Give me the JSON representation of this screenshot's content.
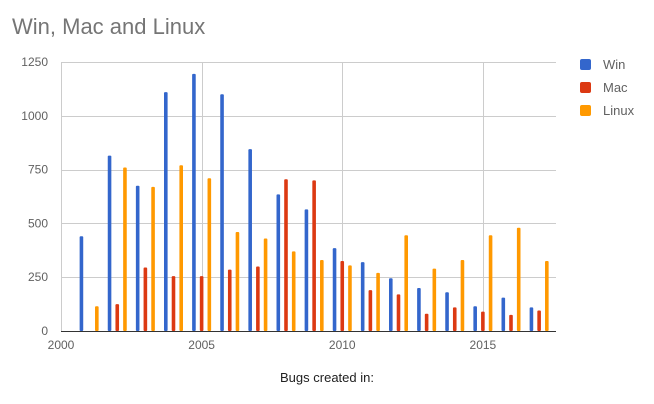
{
  "chart_data": {
    "type": "bar",
    "title": "Win, Mac and Linux",
    "xlabel": "Bugs created in:",
    "ylabel": "",
    "x": [
      2001,
      2002,
      2003,
      2004,
      2005,
      2006,
      2007,
      2008,
      2009,
      2010,
      2011,
      2012,
      2013,
      2014,
      2015,
      2016,
      2017
    ],
    "series": [
      {
        "name": "Win",
        "color": "#3366cc",
        "values": [
          440,
          815,
          675,
          1110,
          1195,
          1100,
          845,
          635,
          565,
          385,
          320,
          245,
          200,
          180,
          115,
          155,
          110
        ]
      },
      {
        "name": "Mac",
        "color": "#dc3912",
        "values": [
          null,
          125,
          295,
          255,
          255,
          285,
          300,
          705,
          700,
          325,
          190,
          170,
          80,
          110,
          90,
          75,
          95
        ]
      },
      {
        "name": "Linux",
        "color": "#ff9900",
        "values": [
          115,
          760,
          670,
          770,
          710,
          460,
          430,
          370,
          330,
          305,
          270,
          445,
          290,
          330,
          445,
          480,
          325
        ]
      }
    ],
    "xlim": [
      2000,
      2017.6
    ],
    "ylim": [
      0,
      1250
    ],
    "xticks": [
      2000,
      2005,
      2010,
      2015
    ],
    "yticks": [
      0,
      250,
      500,
      750,
      1000,
      1250
    ],
    "grid": true,
    "legend_position": "right"
  },
  "legend": [
    {
      "label": "Win",
      "color": "#3366cc"
    },
    {
      "label": "Mac",
      "color": "#dc3912"
    },
    {
      "label": "Linux",
      "color": "#ff9900"
    }
  ]
}
